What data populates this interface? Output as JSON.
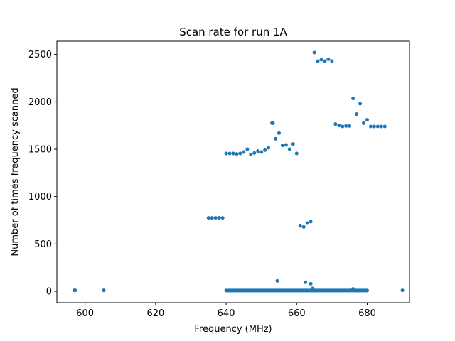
{
  "chart_data": {
    "type": "scatter",
    "title": "Scan rate for run 1A",
    "xlabel": "Frequency (MHz)",
    "ylabel": "Number of times frequency scanned",
    "xlim": [
      592,
      692
    ],
    "ylim": [
      -120,
      2640
    ],
    "xticks": [
      600,
      620,
      640,
      660,
      680
    ],
    "yticks": [
      0,
      500,
      1000,
      1500,
      2000,
      2500
    ],
    "grid": false,
    "marker_color": "#1f77b4",
    "series": [
      {
        "points": [
          [
            597.0,
            10
          ],
          [
            597.2,
            10
          ],
          [
            605.3,
            10
          ],
          [
            635.0,
            775
          ],
          [
            636.0,
            775
          ],
          [
            637.0,
            775
          ],
          [
            638.0,
            775
          ],
          [
            639.0,
            775
          ],
          [
            640.0,
            1455
          ],
          [
            641.0,
            1455
          ],
          [
            642.0,
            1455
          ],
          [
            643.0,
            1450
          ],
          [
            644.0,
            1455
          ],
          [
            645.0,
            1470
          ],
          [
            646.0,
            1500
          ],
          [
            647.0,
            1445
          ],
          [
            648.0,
            1460
          ],
          [
            649.0,
            1480
          ],
          [
            650.0,
            1470
          ],
          [
            651.0,
            1490
          ],
          [
            652.0,
            1515
          ],
          [
            653.0,
            1775
          ],
          [
            653.3,
            1775
          ],
          [
            654.0,
            1610
          ],
          [
            655.0,
            1670
          ],
          [
            656.0,
            1540
          ],
          [
            657.0,
            1545
          ],
          [
            658.0,
            1500
          ],
          [
            659.0,
            1555
          ],
          [
            660.0,
            1455
          ],
          [
            661.0,
            690
          ],
          [
            662.0,
            680
          ],
          [
            663.0,
            720
          ],
          [
            664.0,
            735
          ],
          [
            665.0,
            2520
          ],
          [
            666.0,
            2430
          ],
          [
            667.0,
            2445
          ],
          [
            668.0,
            2430
          ],
          [
            669.0,
            2450
          ],
          [
            670.0,
            2430
          ],
          [
            671.0,
            1765
          ],
          [
            672.0,
            1750
          ],
          [
            673.0,
            1740
          ],
          [
            674.0,
            1745
          ],
          [
            675.0,
            1745
          ],
          [
            676.0,
            2035
          ],
          [
            677.0,
            1870
          ],
          [
            678.0,
            1980
          ],
          [
            679.0,
            1775
          ],
          [
            680.0,
            1810
          ],
          [
            681.0,
            1740
          ],
          [
            682.0,
            1740
          ],
          [
            683.0,
            1740
          ],
          [
            684.0,
            1740
          ],
          [
            685.0,
            1740
          ],
          [
            654.5,
            110
          ],
          [
            662.5,
            95
          ],
          [
            664.0,
            80
          ],
          [
            664.5,
            30
          ],
          [
            676.0,
            25
          ],
          [
            690.0,
            10
          ]
        ],
        "dense_band": {
          "x_from": 640,
          "x_to": 680,
          "y": 8
        }
      }
    ]
  }
}
